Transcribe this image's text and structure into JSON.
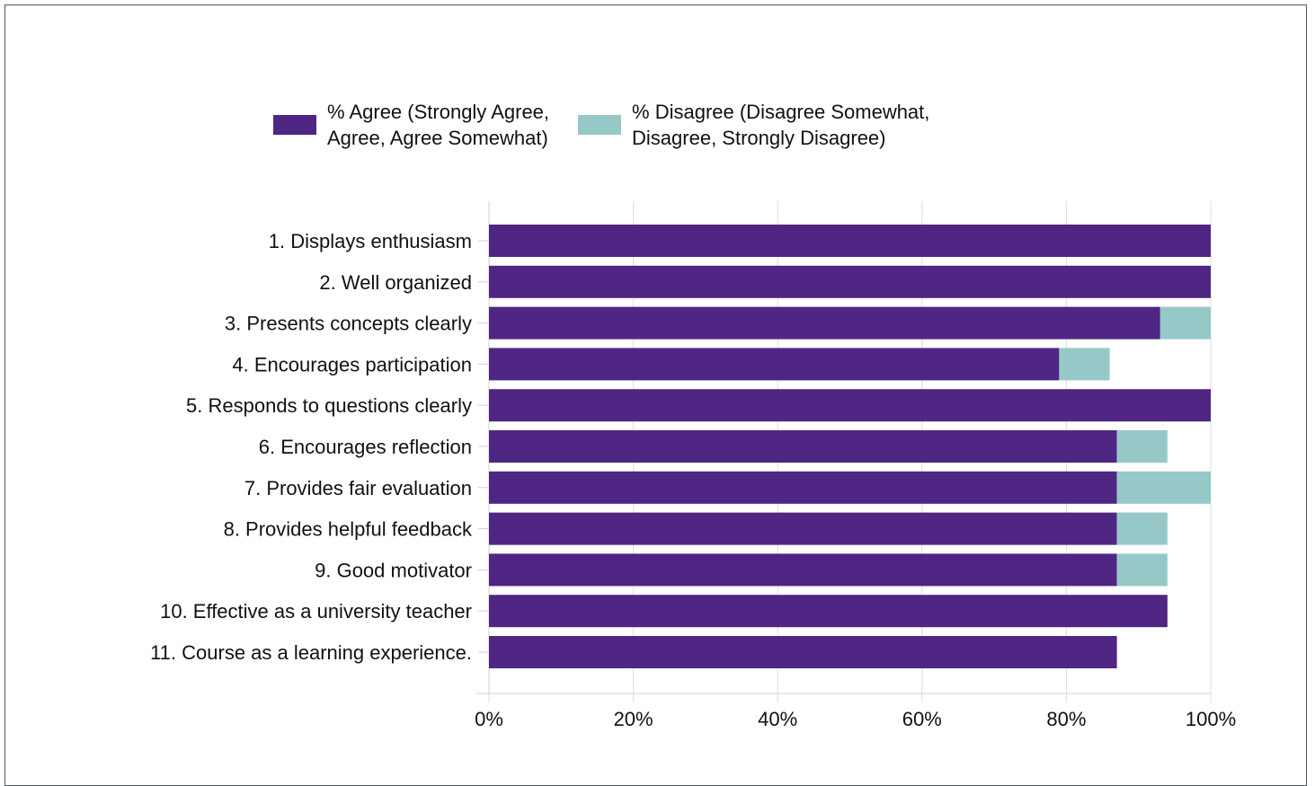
{
  "chart_data": {
    "type": "bar",
    "orientation": "horizontal",
    "stacked": true,
    "categories": [
      "1. Displays enthusiasm",
      "2. Well organized",
      "3. Presents concepts clearly",
      "4. Encourages participation",
      "5. Responds to questions clearly",
      "6. Encourages reflection",
      "7. Provides fair evaluation",
      "8. Provides helpful feedback",
      "9. Good motivator",
      "10. Effective as a university teacher",
      "11. Course as a learning experience."
    ],
    "series": [
      {
        "name": "% Agree (Strongly Agree,\nAgree, Agree Somewhat)",
        "color": "#4f2683",
        "values": [
          100,
          100,
          93,
          79,
          100,
          87,
          87,
          87,
          87,
          94,
          87
        ]
      },
      {
        "name": "% Disagree (Disagree Somewhat,\nDisagree, Strongly Disagree)",
        "color": "#96c8c8",
        "values": [
          0,
          0,
          7,
          7,
          0,
          7,
          13,
          7,
          7,
          0,
          0
        ]
      }
    ],
    "x_axis": {
      "range": [
        0,
        100
      ],
      "ticks": [
        0,
        20,
        40,
        60,
        80,
        100
      ],
      "tick_labels": [
        "0%",
        "20%",
        "40%",
        "60%",
        "80%",
        "100%"
      ]
    },
    "grid": true,
    "legend_position": "top"
  }
}
